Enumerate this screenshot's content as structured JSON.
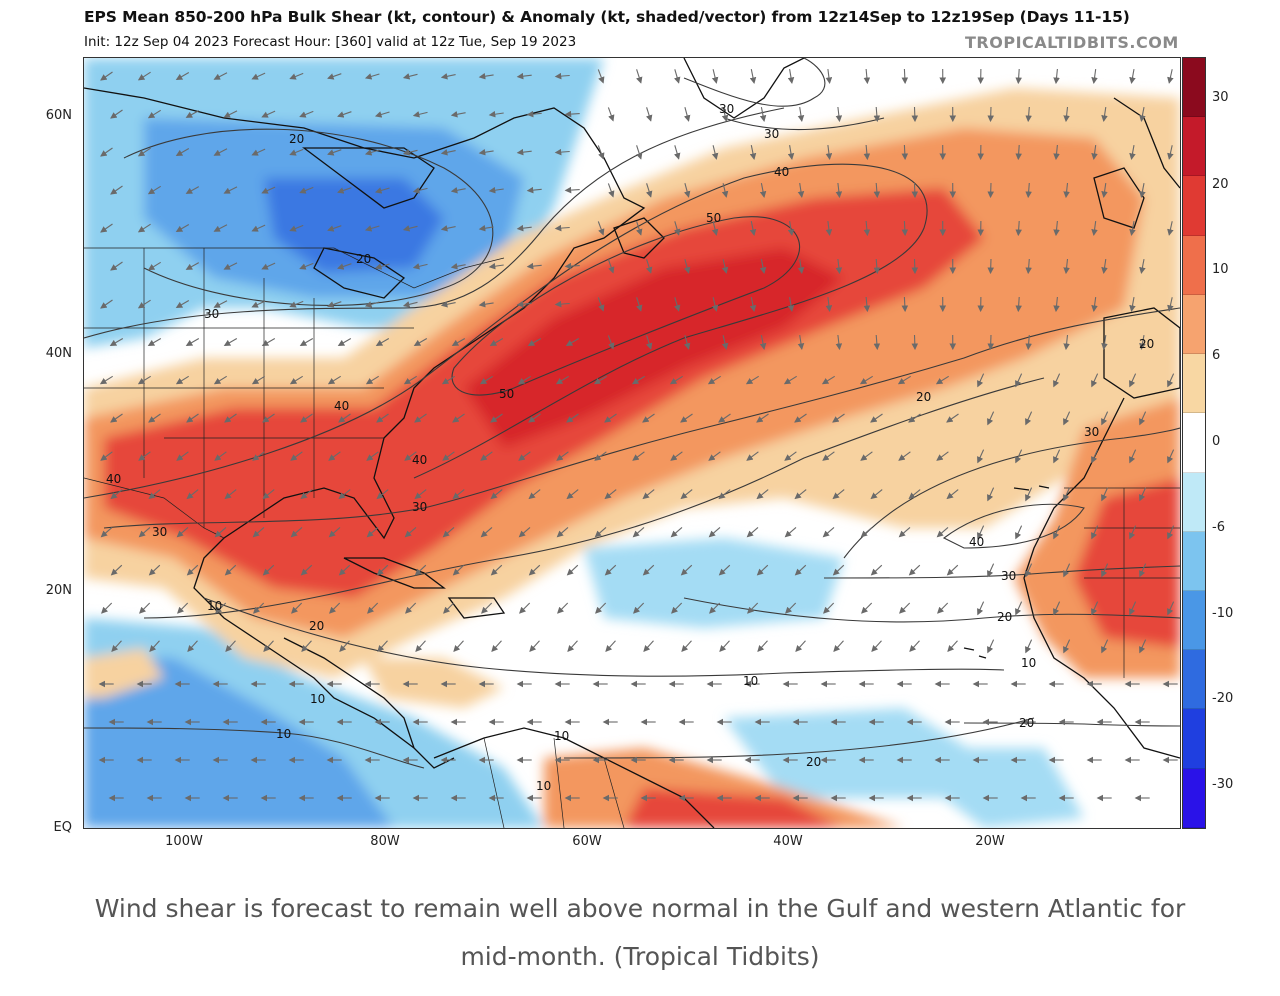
{
  "header": {
    "title": "EPS Mean 850-200 hPa Bulk Shear (kt, contour) & Anomaly (kt, shaded/vector) from 12z14Sep to 12z19Sep (Days 11-15)",
    "subtitle": "Init: 12z Sep 04 2023   Forecast Hour: [360]   valid at 12z Tue, Sep 19 2023",
    "watermark": "TROPICALTIDBITS.COM"
  },
  "map": {
    "lat_labels": [
      "60N",
      "40N",
      "20N",
      "EQ"
    ],
    "lon_labels": [
      "100W",
      "80W",
      "60W",
      "40W",
      "20W"
    ],
    "contour_labels": [
      "20",
      "20",
      "30",
      "30",
      "30",
      "40",
      "40",
      "40",
      "40",
      "50",
      "50",
      "30",
      "20",
      "20",
      "30",
      "40",
      "30",
      "20",
      "10",
      "20",
      "30",
      "10",
      "10",
      "10",
      "10",
      "10",
      "10",
      "20",
      "20"
    ]
  },
  "colorbar": {
    "labels": [
      "30",
      "20",
      "10",
      "6",
      "0",
      "-6",
      "-10",
      "-20",
      "-30"
    ],
    "colors": [
      "#8b0a1e",
      "#c41a2a",
      "#e03a33",
      "#ef6f4b",
      "#f6a36f",
      "#f8d7a3",
      "#ffffff",
      "#bfe9f7",
      "#7cc4ef",
      "#4a97e6",
      "#2f6be0",
      "#1f3fe0",
      "#2a12e8"
    ]
  },
  "caption": {
    "line1": "Wind shear is forecast to remain well above normal in the Gulf and western Atlantic for",
    "line2": "mid-month. (Tropical Tidbits)"
  }
}
